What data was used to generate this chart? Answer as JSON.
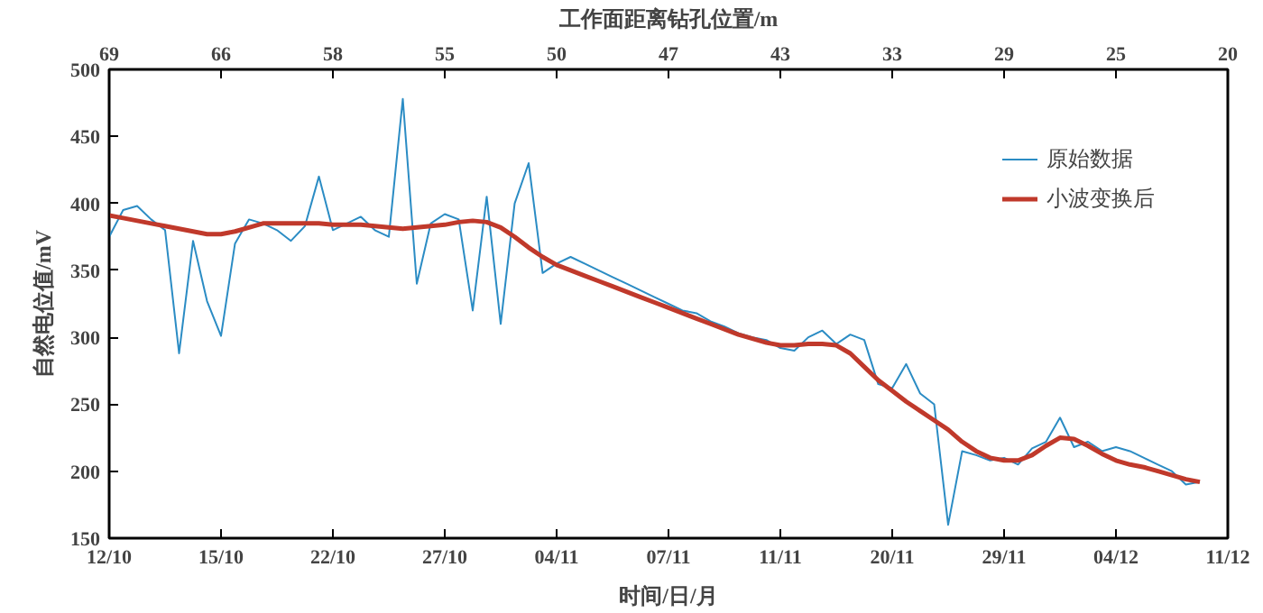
{
  "chart_data": {
    "type": "line",
    "xlabel": "时间/日/月",
    "ylabel": "自然电位值/mV",
    "x2label": "工作面距离钻孔位置/m",
    "categories": [
      "12/10",
      null,
      null,
      null,
      null,
      null,
      null,
      null,
      "15/10",
      null,
      null,
      null,
      null,
      null,
      null,
      null,
      "22/10",
      null,
      null,
      null,
      null,
      null,
      null,
      null,
      "27/10",
      null,
      null,
      null,
      null,
      null,
      null,
      null,
      "04/11",
      null,
      null,
      null,
      null,
      null,
      null,
      null,
      "07/11",
      null,
      null,
      null,
      null,
      null,
      null,
      null,
      "11/11",
      null,
      null,
      null,
      null,
      null,
      null,
      null,
      "20/11",
      null,
      null,
      null,
      null,
      null,
      null,
      null,
      "29/11",
      null,
      null,
      null,
      null,
      null,
      null,
      null,
      "04/12",
      null,
      null,
      null,
      null,
      null,
      null,
      null,
      "11/12"
    ],
    "annotations": [
      "69",
      "66",
      "58",
      "55",
      "50",
      "47",
      "43",
      "33",
      "29",
      "25",
      "20"
    ],
    "ylim": [
      150,
      500
    ],
    "yticks": [
      150,
      200,
      250,
      300,
      350,
      400,
      450,
      500
    ],
    "grid": false,
    "legend": "top right",
    "line_style": "solid",
    "series": [
      {
        "name": "原始数据",
        "color": "#2b8cc4",
        "values": [
          375,
          395,
          398,
          388,
          380,
          288,
          372,
          327,
          301,
          370,
          388,
          385,
          380,
          372,
          383,
          420,
          380,
          385,
          390,
          380,
          375,
          478,
          340,
          385,
          392,
          388,
          320,
          405,
          310,
          400,
          430,
          348,
          355,
          360,
          355,
          350,
          345,
          340,
          335,
          330,
          325,
          320,
          318,
          312,
          308,
          303,
          300,
          298,
          292,
          290,
          300,
          305,
          295,
          302,
          298,
          265,
          262,
          280,
          258,
          250,
          160,
          215,
          212,
          208,
          210,
          205,
          217,
          222,
          240,
          218,
          222,
          215,
          218,
          215,
          210,
          205,
          200,
          190,
          192,
          null,
          null
        ]
      },
      {
        "name": "小波变换后",
        "color": "#c0392b",
        "values": [
          391,
          389,
          387,
          385,
          383,
          381,
          379,
          377,
          377,
          379,
          382,
          385,
          385,
          385,
          385,
          385,
          384,
          384,
          384,
          383,
          382,
          381,
          382,
          383,
          384,
          386,
          387,
          386,
          382,
          375,
          367,
          360,
          354,
          350,
          346,
          342,
          338,
          334,
          330,
          326,
          322,
          318,
          314,
          310,
          306,
          302,
          299,
          296,
          294,
          294,
          295,
          295,
          294,
          288,
          278,
          268,
          260,
          252,
          245,
          238,
          231,
          222,
          215,
          210,
          208,
          208,
          212,
          219,
          225,
          224,
          219,
          213,
          208,
          205,
          203,
          200,
          197,
          194,
          192,
          null,
          null
        ]
      }
    ]
  }
}
